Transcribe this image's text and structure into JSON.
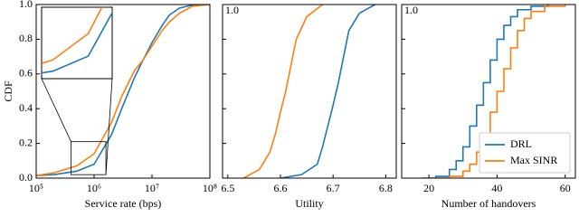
{
  "chart_data": [
    {
      "type": "line",
      "xlabel": "Service rate (bps)",
      "ylabel": "CDF",
      "xscale": "log",
      "x": [
        100000,
        200000,
        500000,
        1000000,
        2000000,
        3000000,
        5000000,
        7000000,
        10000000,
        15000000,
        20000000,
        30000000,
        50000000,
        100000000
      ],
      "series": [
        {
          "name": "DRL",
          "color": "#1f77b4",
          "values": [
            0.015,
            0.02,
            0.04,
            0.08,
            0.25,
            0.4,
            0.58,
            0.68,
            0.78,
            0.88,
            0.94,
            0.98,
            0.997,
            1.0
          ]
        },
        {
          "name": "Max SINR",
          "color": "#ff7f0e",
          "values": [
            0.015,
            0.03,
            0.07,
            0.14,
            0.32,
            0.47,
            0.62,
            0.68,
            0.76,
            0.85,
            0.9,
            0.95,
            0.99,
            1.0
          ]
        }
      ],
      "xlim": [
        100000,
        100000000
      ],
      "xticks": [
        {
          "value": 100000,
          "label": "10⁵"
        },
        {
          "value": 1000000,
          "label": "10⁶"
        },
        {
          "value": 10000000,
          "label": "10⁷"
        },
        {
          "value": 100000000,
          "label": "10⁸"
        }
      ],
      "ylim": [
        0,
        1
      ],
      "yticks": [
        {
          "value": 0,
          "label": "0.0"
        },
        0.2,
        0.4,
        0.6,
        0.8,
        {
          "value": 1,
          "label": "1.0"
        }
      ],
      "inset": {
        "xlim": [
          400000,
          1600000
        ],
        "ylim": [
          0.02,
          0.21
        ]
      }
    },
    {
      "type": "line",
      "xlabel": "Utility",
      "series": [
        {
          "name": "DRL",
          "color": "#1f77b4",
          "x": [
            6.6,
            6.64,
            6.67,
            6.68,
            6.69,
            6.7,
            6.71,
            6.72,
            6.73,
            6.75,
            6.78
          ],
          "values": [
            0,
            0.02,
            0.08,
            0.18,
            0.3,
            0.42,
            0.55,
            0.7,
            0.85,
            0.95,
            1
          ]
        },
        {
          "name": "Max SINR",
          "color": "#ff7f0e",
          "x": [
            6.53,
            6.56,
            6.58,
            6.59,
            6.6,
            6.61,
            6.62,
            6.63,
            6.65,
            6.68
          ],
          "values": [
            0,
            0.05,
            0.15,
            0.25,
            0.38,
            0.5,
            0.65,
            0.8,
            0.93,
            1.0
          ]
        }
      ],
      "xlim": [
        6.49,
        6.82
      ],
      "xticks": [
        6.5,
        6.6,
        6.7,
        6.8
      ],
      "ylim": [
        0,
        1
      ],
      "yticks": [
        {
          "value": 0,
          "label": null
        },
        {
          "value": 0.2,
          "label": null
        },
        {
          "value": 0.4,
          "label": null
        },
        {
          "value": 0.6,
          "label": null
        },
        {
          "value": 0.8,
          "label": null
        },
        {
          "value": 1,
          "label": "1.0"
        }
      ]
    },
    {
      "type": "step",
      "xlabel": "Number of handovers",
      "legend": "lower right",
      "series": [
        {
          "name": "DRL",
          "color": "#1f77b4",
          "x": [
            18,
            22,
            26,
            28,
            30,
            32,
            34,
            36,
            38,
            40,
            42,
            44,
            46,
            50,
            55
          ],
          "values": [
            0,
            0.01,
            0.05,
            0.1,
            0.18,
            0.3,
            0.42,
            0.55,
            0.68,
            0.8,
            0.88,
            0.93,
            0.97,
            0.99,
            1
          ]
        },
        {
          "name": "Max SINR",
          "color": "#ff7f0e",
          "x": [
            22,
            26,
            30,
            32,
            34,
            36,
            38,
            40,
            42,
            44,
            46,
            48,
            50,
            54,
            60
          ],
          "values": [
            0,
            0.01,
            0.04,
            0.08,
            0.15,
            0.25,
            0.38,
            0.5,
            0.63,
            0.75,
            0.85,
            0.92,
            0.96,
            0.99,
            1
          ]
        }
      ],
      "xlim": [
        12,
        63
      ],
      "xticks": [
        20,
        40,
        60
      ],
      "ylim": [
        0,
        1
      ],
      "yticks": [
        {
          "value": 0,
          "label": null
        },
        {
          "value": 0.2,
          "label": null
        },
        {
          "value": 0.4,
          "label": null
        },
        {
          "value": 0.6,
          "label": null
        },
        {
          "value": 0.8,
          "label": null
        },
        {
          "value": 1,
          "label": "1.0"
        }
      ]
    }
  ]
}
